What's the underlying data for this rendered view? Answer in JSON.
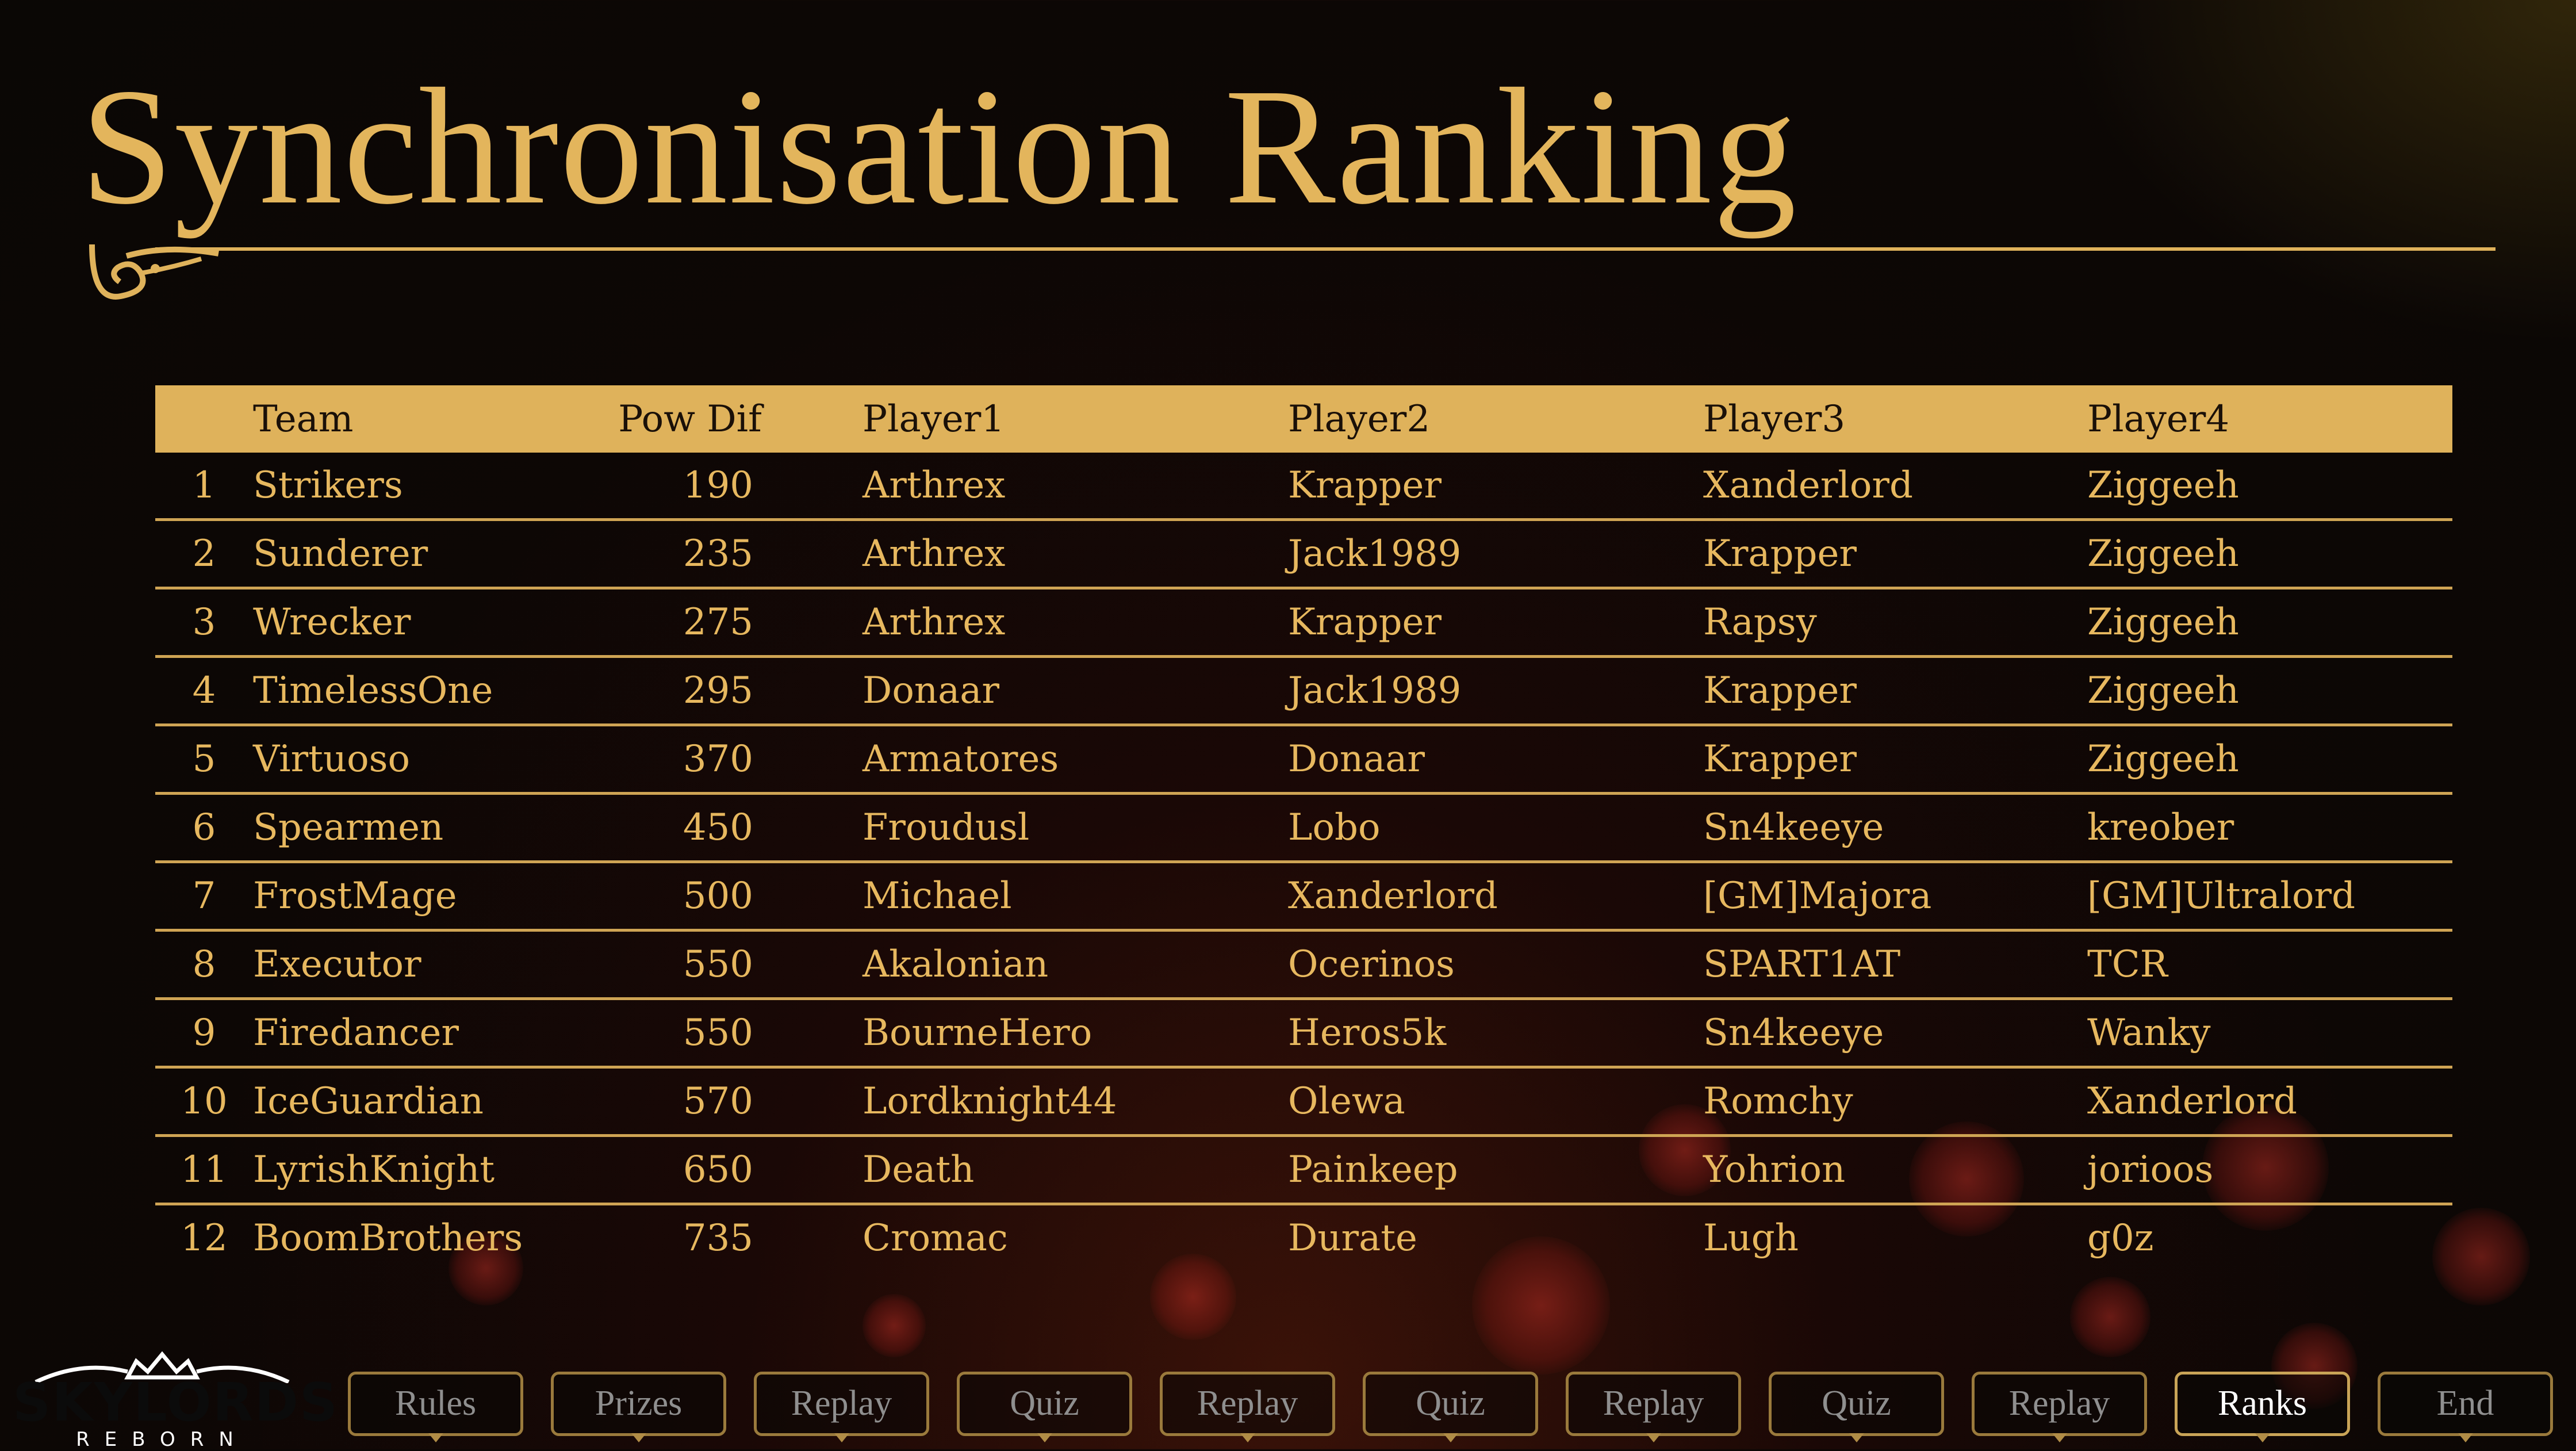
{
  "title": "Synchronisation Ranking",
  "colors": {
    "gold": "#e3b55c",
    "header_bg": "#dfb25b",
    "background": "#0a0705"
  },
  "table": {
    "headers": {
      "rank": "",
      "team": "Team",
      "pow_dif": "Pow Dif",
      "player1": "Player1",
      "player2": "Player2",
      "player3": "Player3",
      "player4": "Player4"
    },
    "rows": [
      {
        "rank": "1",
        "team": "Strikers",
        "pow_dif": "190",
        "player1": "Arthrex",
        "player2": "Krapper",
        "player3": "Xanderlord",
        "player4": "Ziggeeh"
      },
      {
        "rank": "2",
        "team": "Sunderer",
        "pow_dif": "235",
        "player1": "Arthrex",
        "player2": "Jack1989",
        "player3": "Krapper",
        "player4": "Ziggeeh"
      },
      {
        "rank": "3",
        "team": "Wrecker",
        "pow_dif": "275",
        "player1": "Arthrex",
        "player2": "Krapper",
        "player3": "Rapsy",
        "player4": "Ziggeeh"
      },
      {
        "rank": "4",
        "team": "TimelessOne",
        "pow_dif": "295",
        "player1": "Donaar",
        "player2": "Jack1989",
        "player3": "Krapper",
        "player4": "Ziggeeh"
      },
      {
        "rank": "5",
        "team": "Virtuoso",
        "pow_dif": "370",
        "player1": "Armatores",
        "player2": "Donaar",
        "player3": "Krapper",
        "player4": "Ziggeeh"
      },
      {
        "rank": "6",
        "team": "Spearmen",
        "pow_dif": "450",
        "player1": "Froudusl",
        "player2": "Lobo",
        "player3": "Sn4keeye",
        "player4": "kreober"
      },
      {
        "rank": "7",
        "team": "FrostMage",
        "pow_dif": "500",
        "player1": "Michael",
        "player2": "Xanderlord",
        "player3": "[GM]Majora",
        "player4": "[GM]Ultralord"
      },
      {
        "rank": "8",
        "team": "Executor",
        "pow_dif": "550",
        "player1": "Akalonian",
        "player2": "Ocerinos",
        "player3": "SPART1AT",
        "player4": "TCR"
      },
      {
        "rank": "9",
        "team": "Firedancer",
        "pow_dif": "550",
        "player1": "BourneHero",
        "player2": "Heros5k",
        "player3": "Sn4keeye",
        "player4": "Wanky"
      },
      {
        "rank": "10",
        "team": "IceGuardian",
        "pow_dif": "570",
        "player1": "Lordknight44",
        "player2": "Olewa",
        "player3": "Romchy",
        "player4": "Xanderlord"
      },
      {
        "rank": "11",
        "team": "LyrishKnight",
        "pow_dif": "650",
        "player1": "Death",
        "player2": "Painkeep",
        "player3": "Yohrion",
        "player4": "jorioos"
      },
      {
        "rank": "12",
        "team": "BoomBrothers",
        "pow_dif": "735",
        "player1": "Cromac",
        "player2": "Durate",
        "player3": "Lugh",
        "player4": "g0z"
      }
    ]
  },
  "logo": {
    "name": "SKYLORDS",
    "subtitle": "REBORN",
    "icon": "crown-wings-icon"
  },
  "nav": [
    {
      "label": "Rules",
      "active": false
    },
    {
      "label": "Prizes",
      "active": false
    },
    {
      "label": "Replay",
      "active": false
    },
    {
      "label": "Quiz",
      "active": false
    },
    {
      "label": "Replay",
      "active": false
    },
    {
      "label": "Quiz",
      "active": false
    },
    {
      "label": "Replay",
      "active": false
    },
    {
      "label": "Quiz",
      "active": false
    },
    {
      "label": "Replay",
      "active": false
    },
    {
      "label": "Ranks",
      "active": true
    },
    {
      "label": "End",
      "active": false
    }
  ]
}
